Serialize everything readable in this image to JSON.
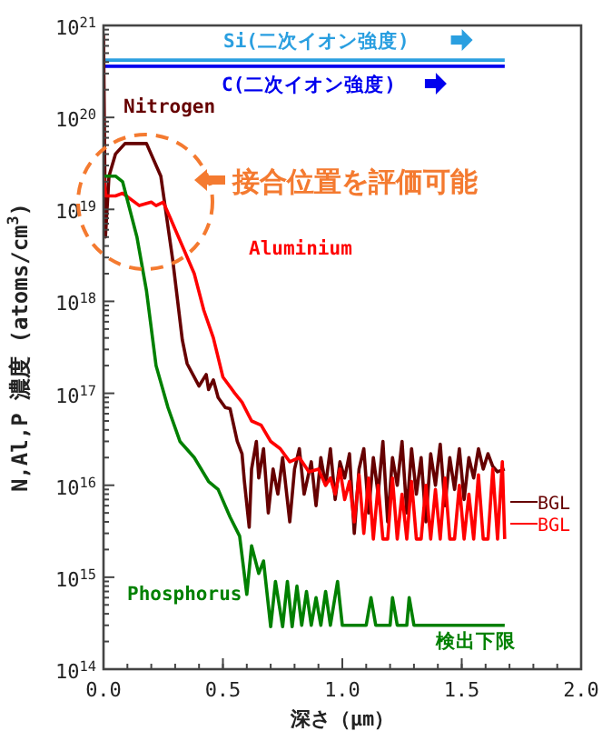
{
  "chart_data": {
    "type": "line",
    "xlabel": "深さ（μm）",
    "ylabel": "N,Al,P 濃度 (atoms/cm$^{3}$)",
    "log": "y",
    "xlim": [
      0,
      2
    ],
    "ylim": [
      100000000000000.0,
      1e+21
    ],
    "xticks": [
      {
        "value": 0,
        "label": "0.0"
      },
      {
        "value": 0.5,
        "label": "0.5"
      },
      {
        "value": 1,
        "label": "1.0"
      },
      {
        "value": 1.5,
        "label": "1.5"
      },
      {
        "value": 2,
        "label": "2.0"
      }
    ],
    "yticks": [
      {
        "value": 100000000000000.0,
        "label": "10$^{14}$"
      },
      {
        "value": 1000000000000000.0,
        "label": "10$^{15}$"
      },
      {
        "value": 1e+16,
        "label": "10$^{16}$"
      },
      {
        "value": 1e+17,
        "label": "10$^{17}$"
      },
      {
        "value": 1e+18,
        "label": "10$^{18}$"
      },
      {
        "value": 1e+19,
        "label": "10$^{19}$"
      },
      {
        "value": 1e+20,
        "label": "10$^{20}$"
      },
      {
        "value": 1e+21,
        "label": "10$^{21}$"
      }
    ],
    "grid": false,
    "legend": "top",
    "series": [
      {
        "name": "Si(二次イオン強度)",
        "color": "#2a9fe0",
        "x": [
          0,
          1.68
        ],
        "values": [
          4.2e+20,
          4.2e+20
        ]
      },
      {
        "name": "C(二次イオン強度)",
        "color": "#0000ee",
        "x": [
          0,
          1.68
        ],
        "values": [
          3.6e+20,
          3.6e+20
        ]
      },
      {
        "name": "Nitrogen",
        "color": "#660000",
        "x": [
          0,
          0.008,
          0.023,
          0.05,
          0.09,
          0.18,
          0.24,
          0.29,
          0.33,
          0.35,
          0.4,
          0.43,
          0.44,
          0.46,
          0.48,
          0.51,
          0.53,
          0.56,
          0.58,
          0.59,
          0.61,
          0.62,
          0.64,
          0.65,
          0.67,
          0.69,
          0.71,
          0.73,
          0.75,
          0.78,
          0.8,
          0.82,
          0.84,
          0.87,
          0.89,
          0.91,
          0.93,
          0.95,
          0.97,
          0.99,
          1.01,
          1.03,
          1.05,
          1.07,
          1.09,
          1.11,
          1.13,
          1.15,
          1.17,
          1.19,
          1.21,
          1.23,
          1.25,
          1.27,
          1.29,
          1.31,
          1.33,
          1.35,
          1.37,
          1.39,
          1.41,
          1.43,
          1.45,
          1.47,
          1.49,
          1.51,
          1.53,
          1.55,
          1.57,
          1.59,
          1.61,
          1.63,
          1.65,
          1.68
        ],
        "values": [
          8e+20,
          5e+18,
          2.3e+19,
          4e+19,
          5.2e+19,
          5.2e+19,
          2.3e+19,
          2.8e+18,
          3.8e+17,
          2.1e+17,
          1.2e+17,
          1.6e+17,
          1.1e+17,
          1.4e+17,
          9e+16,
          7e+16,
          6.8e+16,
          3e+16,
          2.2e+16,
          1.1e+16,
          3500000000000000.0,
          1.5e+16,
          3e+16,
          1.2e+16,
          2.5e+16,
          5000000000000000.0,
          1.5e+16,
          8000000000000000.0,
          2e+16,
          4000000000000000.0,
          1.5e+16,
          2.5e+16,
          8000000000000000.0,
          1.8e+16,
          6000000000000000.0,
          2e+16,
          1e+16,
          2.5e+16,
          7000000000000000.0,
          1.8e+16,
          1.2e+16,
          2.2e+16,
          3000000000000000.0,
          1.5e+16,
          2.5e+16,
          5000000000000000.0,
          2e+16,
          8000000000000000.0,
          3e+16,
          4000000000000000.0,
          2e+16,
          1e+16,
          3e+16,
          5000000000000000.0,
          2.5e+16,
          8000000000000000.0,
          2e+16,
          4000000000000000.0,
          2.2e+16,
          1e+16,
          2.8e+16,
          6000000000000000.0,
          2e+16,
          9000000000000000.0,
          2.5e+16,
          7000000000000000.0,
          2e+16,
          1.2e+16,
          2.5e+16,
          1.5e+16,
          2.2e+16,
          1.6e+16,
          1.4e+16,
          1.5e+16
        ]
      },
      {
        "name": "Aluminium",
        "color": "#ff0000",
        "x": [
          0,
          0.01,
          0.05,
          0.08,
          0.15,
          0.2,
          0.22,
          0.25,
          0.28,
          0.33,
          0.38,
          0.42,
          0.46,
          0.5,
          0.55,
          0.58,
          0.62,
          0.66,
          0.7,
          0.74,
          0.78,
          0.82,
          0.86,
          0.9,
          0.93,
          0.95,
          0.97,
          0.99,
          1.01,
          1.03,
          1.05,
          1.07,
          1.09,
          1.11,
          1.13,
          1.15,
          1.17,
          1.19,
          1.21,
          1.23,
          1.25,
          1.27,
          1.29,
          1.31,
          1.33,
          1.35,
          1.37,
          1.39,
          1.41,
          1.43,
          1.45,
          1.47,
          1.49,
          1.51,
          1.53,
          1.55,
          1.57,
          1.59,
          1.61,
          1.63,
          1.65,
          1.67,
          1.68
        ],
        "values": [
          2.3e+19,
          1.4e+19,
          1.4e+19,
          1.5e+19,
          1.1e+19,
          1.2e+19,
          1.1e+19,
          1.2e+19,
          8e+18,
          4e+18,
          2e+18,
          8e+17,
          4e+17,
          1.5e+17,
          1e+17,
          8e+16,
          5e+16,
          4.5e+16,
          3e+16,
          2.5e+16,
          1.8e+16,
          2e+16,
          1.4e+16,
          1.5e+16,
          1e+16,
          1.2e+16,
          8000000000000000.0,
          1.5e+16,
          7000000000000000.0,
          1.1e+16,
          4000000000000000.0,
          1.3e+16,
          3000000000000000.0,
          1.2e+16,
          2600000000000000.0,
          1e+16,
          2600000000000000.0,
          2600000000000000.0,
          1.2e+16,
          2600000000000000.0,
          8000000000000000.0,
          2600000000000000.0,
          1.1e+16,
          2600000000000000.0,
          2600000000000000.0,
          1e+16,
          2600000000000000.0,
          9000000000000000.0,
          2600000000000000.0,
          1.2e+16,
          2600000000000000.0,
          2600000000000000.0,
          1e+16,
          2600000000000000.0,
          8000000000000000.0,
          2600000000000000.0,
          1.3e+16,
          2600000000000000.0,
          2600000000000000.0,
          1.5e+16,
          2600000000000000.0,
          1.8e+16,
          2600000000000000.0
        ]
      },
      {
        "name": "Phosphorus",
        "color": "#008000",
        "x": [
          0,
          0.05,
          0.08,
          0.14,
          0.18,
          0.22,
          0.27,
          0.32,
          0.38,
          0.44,
          0.48,
          0.53,
          0.57,
          0.6,
          0.62,
          0.65,
          0.67,
          0.7,
          0.72,
          0.75,
          0.77,
          0.79,
          0.81,
          0.83,
          0.85,
          0.87,
          0.89,
          0.91,
          0.93,
          0.95,
          0.98,
          1.0,
          1.1,
          1.12,
          1.14,
          1.2,
          1.21,
          1.23,
          1.27,
          1.28,
          1.3,
          1.68
        ],
        "values": [
          2.3e+19,
          2.3e+19,
          2e+19,
          5e+18,
          1.3e+18,
          2e+17,
          7e+16,
          3e+16,
          2e+16,
          1.1e+16,
          9000000000000000.0,
          4500000000000000.0,
          2800000000000000.0,
          650000000000000.0,
          2200000000000000.0,
          1100000000000000.0,
          1500000000000000.0,
          290000000000000.0,
          900000000000000.0,
          290000000000000.0,
          900000000000000.0,
          290000000000000.0,
          800000000000000.0,
          300000000000000.0,
          700000000000000.0,
          300000000000000.0,
          600000000000000.0,
          300000000000000.0,
          700000000000000.0,
          300000000000000.0,
          900000000000000.0,
          300000000000000.0,
          300000000000000.0,
          600000000000000.0,
          300000000000000.0,
          300000000000000.0,
          600000000000000.0,
          300000000000000.0,
          300000000000000.0,
          600000000000000.0,
          300000000000000.0,
          300000000000000.0
        ]
      }
    ],
    "annotations": [
      "接合位置を評価可能",
      "BGL",
      "BGL",
      "検出下限"
    ]
  }
}
